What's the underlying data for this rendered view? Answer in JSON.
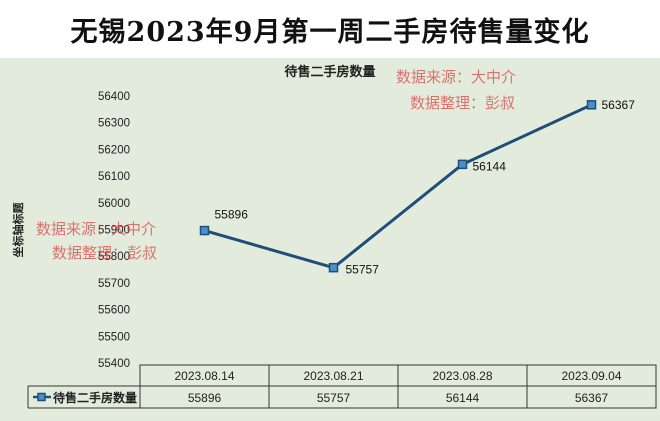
{
  "header": {
    "title": "无锡2023年9月第一周二手房待售量变化"
  },
  "watermarks": [
    {
      "line1": "数据来源：大中介",
      "line2": "数据整理：彭叔"
    },
    {
      "line1": "数据来源：大中介",
      "line2": "数据整理：彭叔"
    }
  ],
  "chart_data": {
    "type": "line",
    "title": "待售二手房数量",
    "ylabel": "坐标轴标题",
    "xlabel": "",
    "categories": [
      "2023.08.14",
      "2023.08.21",
      "2023.08.28",
      "2023.09.04"
    ],
    "series": [
      {
        "name": "待售二手房数量",
        "values": [
          55896,
          55757,
          56144,
          56367
        ],
        "color": "#1f4e79"
      }
    ],
    "ylim": [
      55400,
      56400
    ],
    "yticks": [
      55400,
      55500,
      55600,
      55700,
      55800,
      55900,
      56000,
      56100,
      56200,
      56300,
      56400
    ],
    "grid": false,
    "legend": "data-table",
    "data_table": true
  }
}
